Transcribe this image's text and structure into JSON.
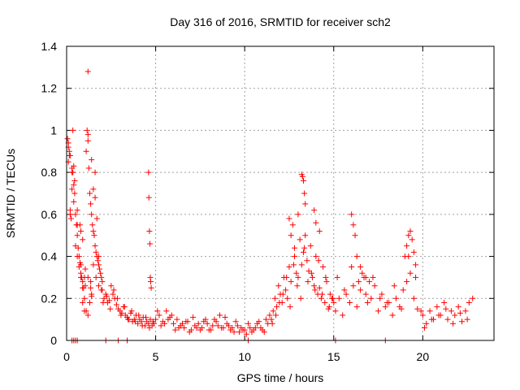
{
  "chart_data": {
    "type": "scatter",
    "title": "Day 316 of 2016, SRMTID for receiver sch2",
    "xlabel": "GPS time / hours",
    "ylabel": "SRMTID / TECUs",
    "xlim": [
      0,
      24
    ],
    "ylim": [
      0,
      1.4
    ],
    "xticks": [
      0,
      5,
      10,
      15,
      20
    ],
    "yticks": [
      0,
      0.2,
      0.4,
      0.6,
      0.8,
      1,
      1.2,
      1.4
    ],
    "ytick_labels": [
      "0",
      "0.2",
      "0.4",
      "0.6",
      "0.8",
      "1",
      "1.2",
      "1.4"
    ],
    "grid": true,
    "marker": "+",
    "color": "#ff0000",
    "series": [
      {
        "name": "sch2",
        "x": [
          0.05,
          0.1,
          0.15,
          0.2,
          0.25,
          0.3,
          0.35,
          0.4,
          0.45,
          0.5,
          0.55,
          0.6,
          0.65,
          0.7,
          0.75,
          0.8,
          0.85,
          0.9,
          0.95,
          1.0,
          1.05,
          1.1,
          1.15,
          1.2,
          1.25,
          1.3,
          1.35,
          1.4,
          1.45,
          1.5,
          1.55,
          1.6,
          1.65,
          1.7,
          1.75,
          1.8,
          1.85,
          1.9,
          1.95,
          2.0,
          0.1,
          0.2,
          0.3,
          0.4,
          0.5,
          0.6,
          0.7,
          0.8,
          0.9,
          1.0,
          1.1,
          1.2,
          1.3,
          1.4,
          1.5,
          1.6,
          1.7,
          1.8,
          0.1,
          0.15,
          0.3,
          0.45,
          0.6,
          0.75,
          0.9,
          1.05,
          1.2,
          1.35,
          1.5,
          1.65,
          1.8,
          1.95,
          0.2,
          0.4,
          0.6,
          0.8,
          1.0,
          1.2,
          1.4,
          1.6,
          0.35,
          0.8,
          0.9,
          1.2,
          1.35,
          1.4,
          2.9,
          3.4,
          2.0,
          2.1,
          2.2,
          2.3,
          2.4,
          2.5,
          2.6,
          2.7,
          2.8,
          2.9,
          3.0,
          3.1,
          3.2,
          3.3,
          3.4,
          3.5,
          3.6,
          3.7,
          3.8,
          3.9,
          4.0,
          4.1,
          4.2,
          4.3,
          4.4,
          4.5,
          4.6,
          4.7,
          4.8,
          4.9,
          2.05,
          2.25,
          2.45,
          2.65,
          2.85,
          3.05,
          3.25,
          3.45,
          3.65,
          3.85,
          4.05,
          4.25,
          4.45,
          4.65,
          4.85,
          4.6,
          4.62,
          4.65,
          4.68,
          4.7,
          4.72,
          4.75,
          5.0,
          5.2,
          5.4,
          5.6,
          5.8,
          6.0,
          6.2,
          6.4,
          6.6,
          6.8,
          7.0,
          7.2,
          7.4,
          7.6,
          7.8,
          8.0,
          8.2,
          8.4,
          8.6,
          8.8,
          9.0,
          9.2,
          9.4,
          9.6,
          9.8,
          10.0,
          10.2,
          10.4,
          10.6,
          10.8,
          11.0,
          11.2,
          11.4,
          5.1,
          5.5,
          5.9,
          6.3,
          6.7,
          7.1,
          7.5,
          7.9,
          8.3,
          8.7,
          9.1,
          9.5,
          9.9,
          10.3,
          10.7,
          11.1,
          5.3,
          5.7,
          6.1,
          6.5,
          6.9,
          7.3,
          7.7,
          8.1,
          8.5,
          8.9,
          9.3,
          9.7,
          10.1,
          10.5,
          10.9,
          11.3,
          11.5,
          11.6,
          11.7,
          11.8,
          11.9,
          12.0,
          12.1,
          12.2,
          12.3,
          12.4,
          12.5,
          12.6,
          12.7,
          12.8,
          12.9,
          13.0,
          13.1,
          13.2,
          13.3,
          13.4,
          13.5,
          13.6,
          13.7,
          13.8,
          13.9,
          14.0,
          14.1,
          14.2,
          14.3,
          14.4,
          14.5,
          14.6,
          14.7,
          14.8,
          14.9,
          15.0,
          11.55,
          11.75,
          11.95,
          12.15,
          12.35,
          12.55,
          12.75,
          12.95,
          13.15,
          13.35,
          13.55,
          13.75,
          13.95,
          14.15,
          14.35,
          14.55,
          14.75,
          14.95,
          13.2,
          13.25,
          13.3,
          13.35,
          13.4,
          12.5,
          12.6,
          12.8,
          13.0,
          13.9,
          14.0,
          14.2,
          15.1,
          15.3,
          15.5,
          15.7,
          15.9,
          16.1,
          16.3,
          16.5,
          16.7,
          16.9,
          17.1,
          17.3,
          17.5,
          17.7,
          17.9,
          18.1,
          18.3,
          18.5,
          18.7,
          18.9,
          19.1,
          19.3,
          19.5,
          19.7,
          19.9,
          15.2,
          15.6,
          16.0,
          16.4,
          16.8,
          17.2,
          17.6,
          18.0,
          18.4,
          18.8,
          19.2,
          19.6,
          16.0,
          16.1,
          16.2,
          16.3,
          16.5,
          16.6,
          16.8,
          17.0,
          19.0,
          19.1,
          19.2,
          19.3,
          19.4,
          19.5,
          19.6,
          20.0,
          20.2,
          20.4,
          20.6,
          20.8,
          21.0,
          21.2,
          21.4,
          21.6,
          21.8,
          22.0,
          22.2,
          22.4,
          22.6,
          22.8,
          20.1,
          20.5,
          20.9,
          21.3,
          21.7,
          22.1,
          22.5,
          0.3,
          0.4,
          0.5,
          0.6,
          2.2,
          10.2,
          15.1,
          17.9
        ],
        "y": [
          0.96,
          0.92,
          0.88,
          0.62,
          0.58,
          0.82,
          0.8,
          0.74,
          0.7,
          0.6,
          0.55,
          0.5,
          0.44,
          0.4,
          0.37,
          0.36,
          0.3,
          0.28,
          0.25,
          0.3,
          0.26,
          0.9,
          1.0,
          0.95,
          0.82,
          0.7,
          0.65,
          0.6,
          0.55,
          0.52,
          0.5,
          0.45,
          0.42,
          0.4,
          0.38,
          0.36,
          0.34,
          0.32,
          0.3,
          0.28,
          0.85,
          0.6,
          0.72,
          0.66,
          0.45,
          0.4,
          0.35,
          0.3,
          0.25,
          0.2,
          0.14,
          0.12,
          0.18,
          0.22,
          0.72,
          0.68,
          0.58,
          0.4,
          0.94,
          0.9,
          0.8,
          0.76,
          0.62,
          0.55,
          0.48,
          0.34,
          0.3,
          0.28,
          0.36,
          0.3,
          0.26,
          0.24,
          0.88,
          0.83,
          0.55,
          0.52,
          0.14,
          0.98,
          0.86,
          0.8,
          1.0,
          0.32,
          0.18,
          1.28,
          0.25,
          0.21,
          0.0,
          0.0,
          0.24,
          0.2,
          0.22,
          0.18,
          0.19,
          0.26,
          0.22,
          0.2,
          0.17,
          0.15,
          0.14,
          0.13,
          0.16,
          0.12,
          0.11,
          0.1,
          0.13,
          0.09,
          0.1,
          0.12,
          0.08,
          0.1,
          0.09,
          0.11,
          0.07,
          0.09,
          0.08,
          0.1,
          0.07,
          0.08,
          0.18,
          0.21,
          0.15,
          0.24,
          0.2,
          0.12,
          0.16,
          0.1,
          0.14,
          0.09,
          0.12,
          0.07,
          0.11,
          0.06,
          0.09,
          0.8,
          0.68,
          0.52,
          0.46,
          0.3,
          0.28,
          0.25,
          0.1,
          0.12,
          0.09,
          0.14,
          0.11,
          0.08,
          0.1,
          0.07,
          0.06,
          0.09,
          0.05,
          0.07,
          0.08,
          0.06,
          0.1,
          0.05,
          0.07,
          0.09,
          0.12,
          0.06,
          0.08,
          0.05,
          0.04,
          0.07,
          0.06,
          0.05,
          0.08,
          0.04,
          0.06,
          0.09,
          0.05,
          0.1,
          0.12,
          0.14,
          0.08,
          0.12,
          0.06,
          0.09,
          0.11,
          0.05,
          0.08,
          0.1,
          0.06,
          0.07,
          0.09,
          0.05,
          0.06,
          0.08,
          0.04,
          0.07,
          0.1,
          0.05,
          0.08,
          0.04,
          0.06,
          0.09,
          0.05,
          0.07,
          0.11,
          0.06,
          0.04,
          0.03,
          0.05,
          0.06,
          0.08,
          0.1,
          0.14,
          0.2,
          0.16,
          0.26,
          0.22,
          0.18,
          0.3,
          0.24,
          0.2,
          0.35,
          0.28,
          0.55,
          0.4,
          0.32,
          0.3,
          0.48,
          0.36,
          0.42,
          0.5,
          0.38,
          0.33,
          0.45,
          0.3,
          0.26,
          0.4,
          0.22,
          0.25,
          0.2,
          0.35,
          0.18,
          0.28,
          0.15,
          0.22,
          0.2,
          0.18,
          0.08,
          0.12,
          0.18,
          0.22,
          0.3,
          0.16,
          0.36,
          0.26,
          0.2,
          0.44,
          0.28,
          0.32,
          0.24,
          0.38,
          0.22,
          0.3,
          0.16,
          0.2,
          0.79,
          0.78,
          0.76,
          0.7,
          0.65,
          0.58,
          0.5,
          0.44,
          0.6,
          0.62,
          0.56,
          0.52,
          0.14,
          0.2,
          0.12,
          0.22,
          0.18,
          0.26,
          0.16,
          0.24,
          0.3,
          0.18,
          0.2,
          0.26,
          0.14,
          0.22,
          0.16,
          0.18,
          0.12,
          0.2,
          0.16,
          0.24,
          0.28,
          0.32,
          0.2,
          0.15,
          0.14,
          0.3,
          0.24,
          0.35,
          0.28,
          0.22,
          0.3,
          0.2,
          0.18,
          0.26,
          0.15,
          0.4,
          0.3,
          0.6,
          0.55,
          0.5,
          0.4,
          0.35,
          0.32,
          0.3,
          0.28,
          0.4,
          0.45,
          0.5,
          0.52,
          0.48,
          0.42,
          0.36,
          0.12,
          0.08,
          0.14,
          0.1,
          0.16,
          0.12,
          0.18,
          0.1,
          0.14,
          0.12,
          0.16,
          0.09,
          0.14,
          0.18,
          0.2,
          0.06,
          0.1,
          0.12,
          0.15,
          0.08,
          0.13,
          0.1,
          0.0,
          0.0,
          0.0,
          0.0,
          0.0,
          0.0,
          0.0,
          0.0
        ]
      }
    ]
  }
}
